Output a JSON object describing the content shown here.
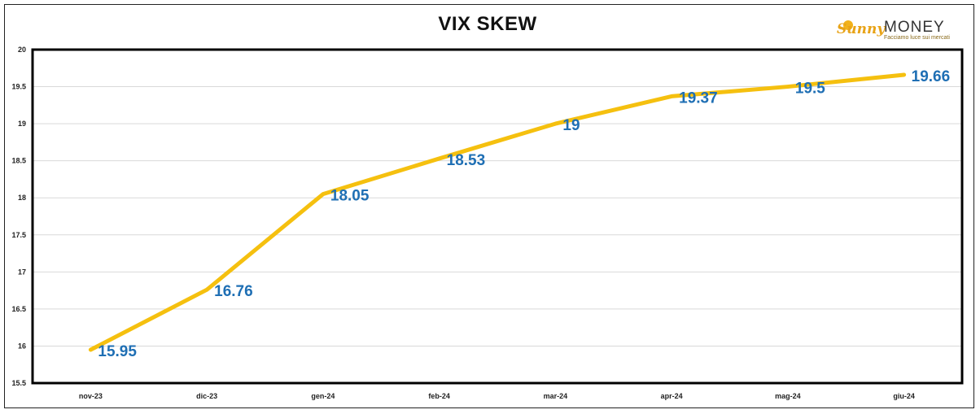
{
  "logo": {
    "brand_part1": "Sunny",
    "brand_part2": "MONEY",
    "tagline": "Facciamo luce sui mercati"
  },
  "colors": {
    "line": "#F5C00F",
    "labels": "#1F6FB4",
    "grid": "#d9d9d9",
    "axis": "#000000"
  },
  "chart_data": {
    "type": "line",
    "title": "VIX SKEW",
    "categories": [
      "nov-23",
      "dic-23",
      "gen-24",
      "feb-24",
      "mar-24",
      "apr-24",
      "mag-24",
      "giu-24"
    ],
    "series": [
      {
        "values": [
          15.95,
          16.76,
          18.05,
          18.53,
          19,
          19.37,
          19.5,
          19.66
        ]
      }
    ],
    "data_labels": [
      "15.95",
      "16.76",
      "18.05",
      "18.53",
      "19",
      "19.37",
      "19.5",
      "19.66"
    ],
    "ylim": [
      15.5,
      20
    ],
    "yticks": [
      15.5,
      16,
      16.5,
      17,
      17.5,
      18,
      18.5,
      19,
      19.5,
      20
    ],
    "ytick_labels": [
      "15.5",
      "16",
      "16.5",
      "17",
      "17.5",
      "18",
      "18.5",
      "19",
      "19.5",
      "20"
    ],
    "grid": true,
    "legend": "none"
  }
}
